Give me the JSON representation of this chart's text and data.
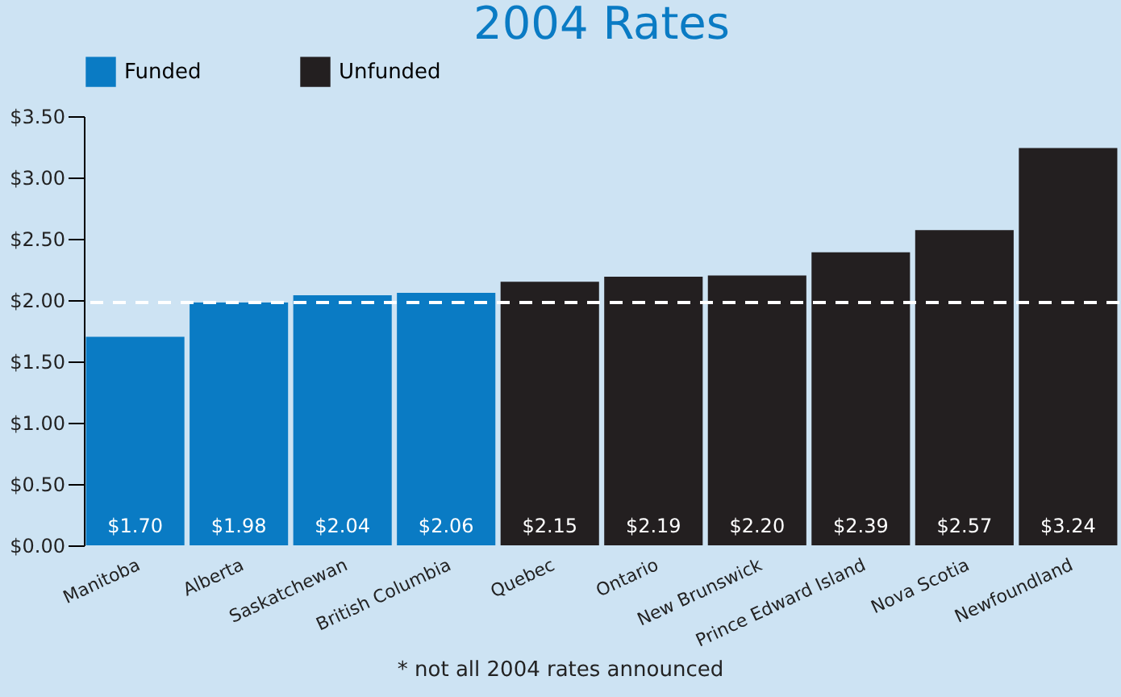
{
  "chart_data": {
    "type": "bar",
    "title": "2004 Rates",
    "categories": [
      "Manitoba",
      "Alberta",
      "Saskatchewan",
      "British Columbia",
      "Quebec",
      "Ontario",
      "New Brunswick",
      "Prince Edward Island",
      "Nova Scotia",
      "Newfoundland"
    ],
    "series": [
      {
        "name": "Funded",
        "color": "#0a7bc4",
        "values": [
          1.7,
          1.98,
          2.04,
          2.06,
          null,
          null,
          null,
          null,
          null,
          null
        ],
        "value_labels": [
          "$1.70",
          "$1.98",
          "$2.04",
          "$2.06",
          null,
          null,
          null,
          null,
          null,
          null
        ]
      },
      {
        "name": "Unfunded",
        "color": "#231f20",
        "values": [
          null,
          null,
          null,
          null,
          2.15,
          2.19,
          2.2,
          2.39,
          2.57,
          3.24
        ],
        "value_labels": [
          null,
          null,
          null,
          null,
          "$2.15",
          "$2.19",
          "$2.20",
          "$2.39",
          "$2.57",
          "$3.24"
        ]
      }
    ],
    "ylim": [
      0,
      3.5
    ],
    "yticks": [
      {
        "value": 0,
        "label": "$0.00"
      },
      {
        "value": 0.5,
        "label": "$0.50"
      },
      {
        "value": 1,
        "label": "$1.00"
      },
      {
        "value": 1.5,
        "label": "$1.50"
      },
      {
        "value": 2,
        "label": "$2.00"
      },
      {
        "value": 2.5,
        "label": "$2.50"
      },
      {
        "value": 3,
        "label": "$3.00"
      },
      {
        "value": 3.5,
        "label": "$3.50"
      }
    ],
    "ref_lines": [
      {
        "axis": "y",
        "value": 1.98,
        "color": "#ffffff",
        "line_style": "dashed"
      }
    ],
    "legend": "top",
    "grid": false,
    "annotations": [
      "* not all 2004 rates announced"
    ]
  }
}
